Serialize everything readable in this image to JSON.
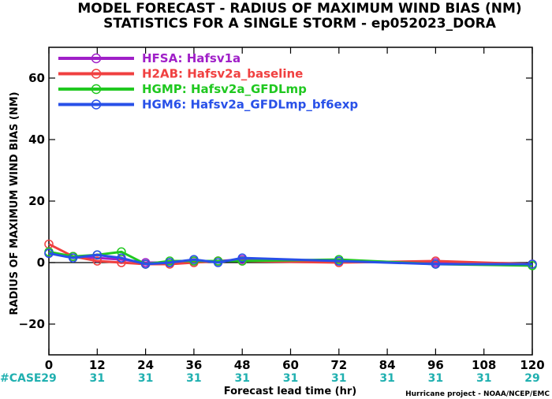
{
  "chart_data": {
    "type": "line",
    "title": "MODEL FORECAST - RADIUS OF MAXIMUM WIND BIAS (NM)",
    "subtitle": "STATISTICS FOR A SINGLE STORM - ep052023_DORA",
    "xlabel": "Forecast lead time (hr)",
    "ylabel": "RADIUS OF MAXIMUM WIND BIAS (NM)",
    "xlim": [
      0,
      120
    ],
    "ylim": [
      -30,
      70
    ],
    "xticks": [
      0,
      12,
      24,
      36,
      48,
      60,
      72,
      84,
      96,
      108,
      120
    ],
    "yticks": [
      -20,
      0,
      20,
      40,
      60
    ],
    "zero_line": true,
    "legend_position": "top-left",
    "series": [
      {
        "name": "HFSA: Hafsv1a",
        "color": "#a020c8",
        "x": [
          0,
          6,
          12,
          18,
          24,
          30,
          36,
          42,
          48,
          72,
          96,
          120
        ],
        "y": [
          3,
          2,
          1.5,
          1,
          0,
          0,
          0.5,
          0.5,
          1,
          0.5,
          0,
          -0.5
        ]
      },
      {
        "name": "H2AB: Hafsv2a_baseline",
        "color": "#f04040",
        "x": [
          0,
          6,
          12,
          18,
          24,
          30,
          36,
          42,
          48,
          72,
          96,
          120
        ],
        "y": [
          6,
          2,
          0.5,
          0,
          -0.5,
          -0.5,
          0,
          0.5,
          0.5,
          0,
          0.5,
          -0.5
        ]
      },
      {
        "name": "HGMP: Hafsv2a_GFDLmp",
        "color": "#20c820",
        "x": [
          0,
          6,
          12,
          18,
          24,
          30,
          36,
          42,
          48,
          72,
          96,
          120
        ],
        "y": [
          3.5,
          2,
          2.5,
          3.5,
          -0.5,
          0.5,
          0.5,
          0.5,
          0.5,
          1,
          -0.5,
          -1
        ]
      },
      {
        "name": "HGM6: Hafsv2a_GFDLmp_bf6exp",
        "color": "#2850e8",
        "x": [
          0,
          6,
          12,
          18,
          24,
          30,
          36,
          42,
          48,
          72,
          96,
          120
        ],
        "y": [
          3,
          1.5,
          2.5,
          1.5,
          -0.5,
          0,
          1,
          0,
          1.5,
          0.5,
          -0.5,
          -0.5
        ]
      }
    ],
    "case_label": "#CASE",
    "case_color": "#20b0b0",
    "cases": [
      {
        "x": 0,
        "count": "29"
      },
      {
        "x": 12,
        "count": "31"
      },
      {
        "x": 24,
        "count": "31"
      },
      {
        "x": 36,
        "count": "31"
      },
      {
        "x": 48,
        "count": "31"
      },
      {
        "x": 60,
        "count": "31"
      },
      {
        "x": 72,
        "count": "31"
      },
      {
        "x": 84,
        "count": "31"
      },
      {
        "x": 96,
        "count": "31"
      },
      {
        "x": 108,
        "count": "31"
      },
      {
        "x": 120,
        "count": "29"
      }
    ],
    "credit": "Hurricane project - NOAA/NCEP/EMC"
  }
}
